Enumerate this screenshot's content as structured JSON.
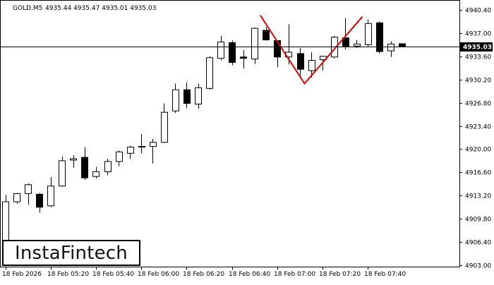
{
  "chart_data": {
    "type": "candlestick",
    "title": "GOLD,M5",
    "ohlc_header": "4935.44 4935.47 4935.01 4935.03",
    "current_price": 4935.03,
    "current_price_label": "4935.03",
    "ylim": [
      4903.0,
      4940.4
    ],
    "y_ticks": [
      4940.4,
      4937.0,
      4933.6,
      4930.2,
      4926.8,
      4923.4,
      4920.0,
      4916.6,
      4913.2,
      4909.8,
      4906.4,
      4903.0
    ],
    "y_tick_labels": [
      "4940.40",
      "4937.00",
      "4933.60",
      "4930.20",
      "4926.80",
      "4923.40",
      "4920.00",
      "4916.60",
      "4913.20",
      "4909.80",
      "4906.40",
      "4903.00"
    ],
    "x_tick_labels": [
      {
        "index": 0,
        "label": "18 Feb 2026"
      },
      {
        "index": 4,
        "label": "18 Feb 05:20"
      },
      {
        "index": 8,
        "label": "18 Feb 05:40"
      },
      {
        "index": 12,
        "label": "18 Feb 06:00"
      },
      {
        "index": 16,
        "label": "18 Feb 06:20"
      },
      {
        "index": 20,
        "label": "18 Feb 06:40"
      },
      {
        "index": 24,
        "label": "18 Feb 07:00"
      },
      {
        "index": 28,
        "label": "18 Feb 07:20"
      },
      {
        "index": 32,
        "label": "18 Feb 07:40"
      }
    ],
    "candles": [
      {
        "o": 4904.3,
        "h": 4913.3,
        "l": 4904.3,
        "c": 4912.3
      },
      {
        "o": 4912.3,
        "h": 4913.6,
        "l": 4912.0,
        "c": 4913.5
      },
      {
        "o": 4913.5,
        "h": 4915.0,
        "l": 4911.9,
        "c": 4914.8
      },
      {
        "o": 4913.4,
        "h": 4913.6,
        "l": 4910.7,
        "c": 4911.5
      },
      {
        "o": 4911.7,
        "h": 4915.9,
        "l": 4911.5,
        "c": 4914.6
      },
      {
        "o": 4914.6,
        "h": 4918.9,
        "l": 4914.5,
        "c": 4918.3
      },
      {
        "o": 4918.4,
        "h": 4919.1,
        "l": 4917.3,
        "c": 4918.6
      },
      {
        "o": 4918.8,
        "h": 4920.3,
        "l": 4915.5,
        "c": 4915.8
      },
      {
        "o": 4916.0,
        "h": 4917.4,
        "l": 4915.7,
        "c": 4916.7
      },
      {
        "o": 4916.7,
        "h": 4918.6,
        "l": 4916.2,
        "c": 4918.2
      },
      {
        "o": 4918.2,
        "h": 4919.8,
        "l": 4917.5,
        "c": 4919.6
      },
      {
        "o": 4919.4,
        "h": 4920.5,
        "l": 4918.6,
        "c": 4920.3
      },
      {
        "o": 4920.3,
        "h": 4922.2,
        "l": 4919.4,
        "c": 4920.4
      },
      {
        "o": 4920.4,
        "h": 4921.5,
        "l": 4917.9,
        "c": 4921.0
      },
      {
        "o": 4921.0,
        "h": 4926.7,
        "l": 4920.9,
        "c": 4925.4
      },
      {
        "o": 4925.6,
        "h": 4929.6,
        "l": 4925.3,
        "c": 4928.7
      },
      {
        "o": 4928.7,
        "h": 4929.8,
        "l": 4926.0,
        "c": 4926.7
      },
      {
        "o": 4926.6,
        "h": 4929.6,
        "l": 4925.9,
        "c": 4929.0
      },
      {
        "o": 4928.9,
        "h": 4933.6,
        "l": 4928.7,
        "c": 4933.4
      },
      {
        "o": 4933.3,
        "h": 4936.6,
        "l": 4933.0,
        "c": 4935.7
      },
      {
        "o": 4935.6,
        "h": 4935.9,
        "l": 4932.3,
        "c": 4932.7
      },
      {
        "o": 4933.5,
        "h": 4934.5,
        "l": 4931.8,
        "c": 4933.3
      },
      {
        "o": 4933.2,
        "h": 4937.8,
        "l": 4932.5,
        "c": 4937.7
      },
      {
        "o": 4937.4,
        "h": 4937.9,
        "l": 4935.9,
        "c": 4936.0
      },
      {
        "o": 4935.9,
        "h": 4935.9,
        "l": 4932.0,
        "c": 4933.5
      },
      {
        "o": 4933.5,
        "h": 4938.3,
        "l": 4932.4,
        "c": 4934.2
      },
      {
        "o": 4934.0,
        "h": 4934.8,
        "l": 4930.7,
        "c": 4931.7
      },
      {
        "o": 4931.5,
        "h": 4934.2,
        "l": 4930.5,
        "c": 4933.0
      },
      {
        "o": 4933.1,
        "h": 4933.7,
        "l": 4931.5,
        "c": 4933.6
      },
      {
        "o": 4933.5,
        "h": 4936.6,
        "l": 4933.3,
        "c": 4936.4
      },
      {
        "o": 4936.3,
        "h": 4939.2,
        "l": 4934.6,
        "c": 4935.1
      },
      {
        "o": 4935.1,
        "h": 4936.0,
        "l": 4934.8,
        "c": 4935.4
      },
      {
        "o": 4935.3,
        "h": 4939.0,
        "l": 4935.0,
        "c": 4938.4
      },
      {
        "o": 4938.5,
        "h": 4938.7,
        "l": 4934.0,
        "c": 4934.3
      },
      {
        "o": 4934.4,
        "h": 4935.8,
        "l": 4933.5,
        "c": 4935.4
      },
      {
        "o": 4935.44,
        "h": 4935.47,
        "l": 4935.01,
        "c": 4935.03
      }
    ],
    "pattern_line": [
      {
        "index": 22.5,
        "price": 4939.6
      },
      {
        "index": 26.4,
        "price": 4929.6
      },
      {
        "index": 31.5,
        "price": 4939.4
      }
    ],
    "colors": {
      "bull_fill": "#ffffff",
      "bear_fill": "#000000",
      "candle_stroke": "#000000",
      "pattern_line": "#e00000",
      "price_line": "#000000",
      "grid_axis": "#000000"
    }
  },
  "logo": {
    "text": "InstaFintech"
  }
}
